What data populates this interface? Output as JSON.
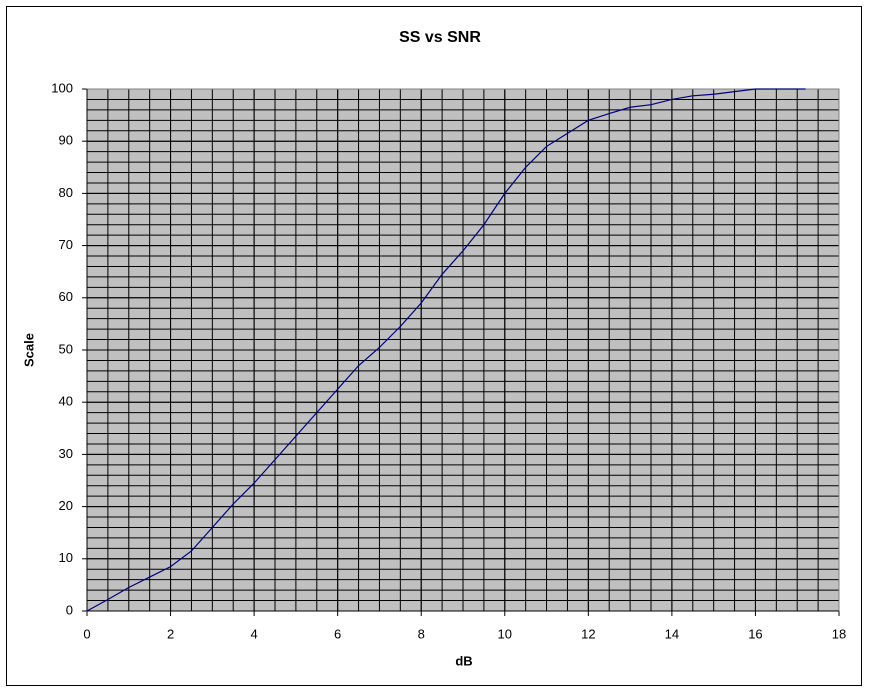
{
  "chart_data": {
    "type": "line",
    "title": "SS vs SNR",
    "x_label": "dB",
    "y_label": "Scale",
    "x": [
      0,
      0.5,
      1,
      1.5,
      2,
      2.5,
      3,
      3.5,
      4,
      4.5,
      5,
      5.5,
      6,
      6.5,
      7,
      7.5,
      8,
      8.5,
      9,
      9.5,
      10,
      10.5,
      11,
      11.5,
      12,
      12.5,
      13,
      13.5,
      14,
      14.5,
      15,
      15.5,
      16,
      16.5,
      17,
      17.2
    ],
    "series": [
      {
        "color": "#000080",
        "values": [
          0,
          2.2,
          4.5,
          6.5,
          8.5,
          11.5,
          16,
          20.5,
          24.5,
          29,
          33.5,
          38,
          42.5,
          47,
          50.5,
          54.5,
          59,
          64.5,
          69,
          74,
          80,
          85,
          89,
          91.5,
          94,
          95.3,
          96.5,
          97,
          98,
          98.7,
          99,
          99.5,
          100,
          100,
          100,
          100
        ]
      }
    ],
    "xlim": [
      0,
      18
    ],
    "xticks": [
      0,
      2,
      4,
      6,
      8,
      10,
      12,
      14,
      16,
      18
    ],
    "ylim": [
      0,
      100
    ],
    "yticks": [
      0,
      10,
      20,
      30,
      40,
      50,
      60,
      70,
      80,
      90,
      100
    ],
    "grid": true,
    "minor_grid": {
      "x": 0.5,
      "y": 2
    },
    "plot_background": "#c0c0c0"
  }
}
